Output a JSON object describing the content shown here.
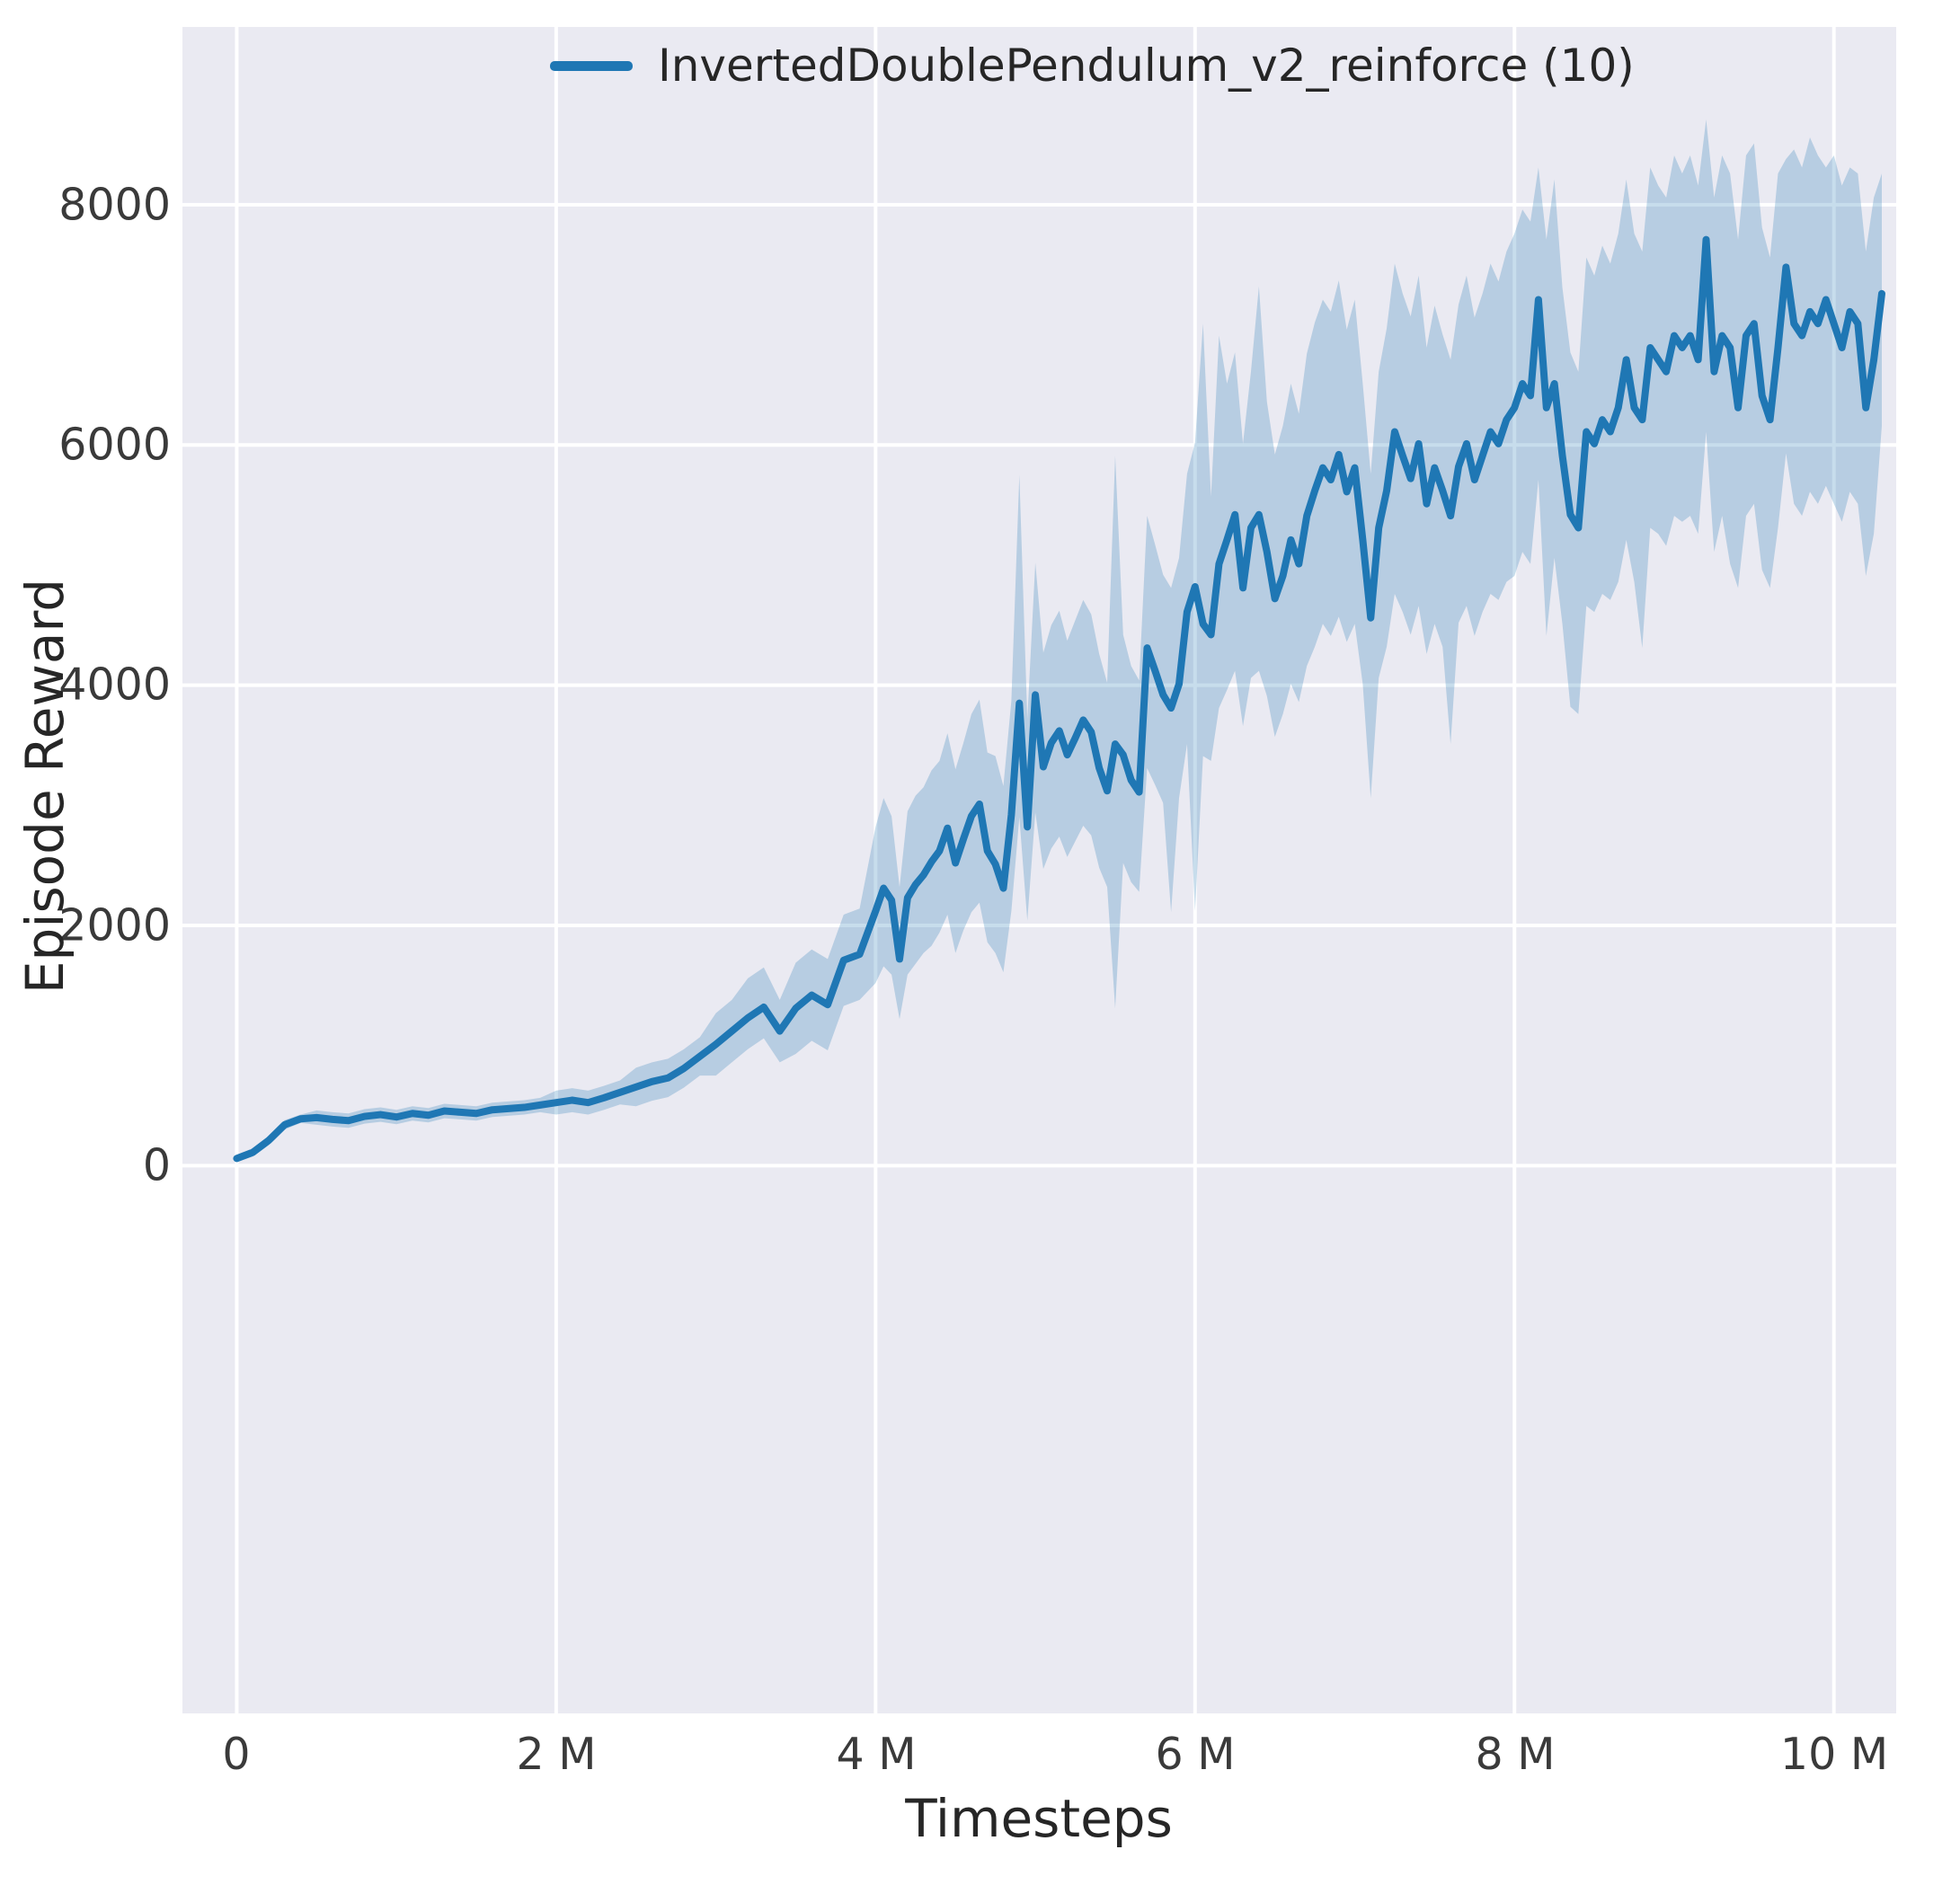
{
  "figure": {
    "background": "#ffffff",
    "plot_background": "#eaeaf2",
    "grid_color": "#ffffff",
    "text_color": "#262626"
  },
  "legend": {
    "label": "InvertedDoublePendulum_v2_reinforce (10)",
    "line_color": "#1f77b4"
  },
  "axes": {
    "xlabel": "Timesteps",
    "ylabel": "Episode Reward",
    "xticks": [
      "0",
      "2 M",
      "4 M",
      "6 M",
      "8 M",
      "10 M"
    ],
    "yticks": [
      "8000",
      "6000",
      "4000",
      "2000",
      "0"
    ]
  },
  "chart_data": {
    "type": "line",
    "title": "",
    "xlabel": "Timesteps",
    "ylabel": "Episode Reward",
    "series_name": "InvertedDoublePendulum_v2_reinforce (10)",
    "x_units": "millions of timesteps",
    "legend_position": "upper center",
    "grid": true,
    "xlim": [
      -0.34,
      10.39
    ],
    "ylim": [
      -4560,
      9480
    ],
    "xticks_values": [
      0,
      2,
      4,
      6,
      8,
      10
    ],
    "yticks_values": [
      0,
      2000,
      4000,
      6000,
      8000
    ],
    "line_color": "#1f77b4",
    "band_color": "rgba(31,119,180,0.25)",
    "x": [
      0,
      0.1,
      0.2,
      0.3,
      0.4,
      0.5,
      0.6,
      0.7,
      0.8,
      0.9,
      1,
      1.1,
      1.2,
      1.3,
      1.4,
      1.5,
      1.6,
      1.7,
      1.8,
      1.9,
      2,
      2.1,
      2.2,
      2.3,
      2.4,
      2.5,
      2.6,
      2.7,
      2.8,
      2.9,
      3,
      3.1,
      3.2,
      3.3,
      3.4,
      3.5,
      3.6,
      3.7,
      3.8,
      3.9,
      4,
      4.05,
      4.1,
      4.15,
      4.2,
      4.25,
      4.3,
      4.35,
      4.4,
      4.45,
      4.5,
      4.55,
      4.6,
      4.65,
      4.7,
      4.75,
      4.8,
      4.85,
      4.9,
      4.95,
      5,
      5.05,
      5.1,
      5.15,
      5.2,
      5.25,
      5.3,
      5.35,
      5.4,
      5.45,
      5.5,
      5.55,
      5.6,
      5.65,
      5.7,
      5.75,
      5.8,
      5.85,
      5.9,
      5.95,
      6,
      6.05,
      6.1,
      6.15,
      6.2,
      6.25,
      6.3,
      6.35,
      6.4,
      6.45,
      6.5,
      6.55,
      6.6,
      6.65,
      6.7,
      6.75,
      6.8,
      6.85,
      6.9,
      6.95,
      7,
      7.05,
      7.1,
      7.15,
      7.2,
      7.25,
      7.3,
      7.35,
      7.4,
      7.45,
      7.5,
      7.55,
      7.6,
      7.65,
      7.7,
      7.75,
      7.8,
      7.85,
      7.9,
      7.95,
      8,
      8.05,
      8.1,
      8.15,
      8.2,
      8.25,
      8.3,
      8.35,
      8.4,
      8.45,
      8.5,
      8.55,
      8.6,
      8.65,
      8.7,
      8.75,
      8.8,
      8.85,
      8.9,
      8.95,
      9,
      9.05,
      9.1,
      9.15,
      9.2,
      9.25,
      9.3,
      9.35,
      9.4,
      9.45,
      9.5,
      9.55,
      9.6,
      9.65,
      9.7,
      9.75,
      9.8,
      9.85,
      9.9,
      9.95,
      10,
      10.05,
      10.1,
      10.15,
      10.2,
      10.25,
      10.3
    ],
    "mean": [
      60,
      110,
      210,
      340,
      390,
      400,
      385,
      375,
      410,
      425,
      405,
      435,
      420,
      455,
      445,
      435,
      465,
      475,
      485,
      505,
      525,
      545,
      525,
      565,
      610,
      655,
      700,
      730,
      810,
      910,
      1010,
      1120,
      1230,
      1320,
      1120,
      1310,
      1420,
      1340,
      1710,
      1760,
      2120,
      2310,
      2210,
      1720,
      2230,
      2340,
      2420,
      2530,
      2620,
      2810,
      2520,
      2720,
      2910,
      3010,
      2620,
      2510,
      2310,
      2920,
      3850,
      2820,
      3920,
      3320,
      3520,
      3620,
      3420,
      3560,
      3710,
      3610,
      3310,
      3120,
      3510,
      3420,
      3210,
      3110,
      4310,
      4120,
      3920,
      3810,
      4010,
      4610,
      4820,
      4510,
      4420,
      5010,
      5210,
      5420,
      4810,
      5310,
      5420,
      5110,
      4720,
      4910,
      5210,
      5010,
      5410,
      5620,
      5810,
      5710,
      5920,
      5610,
      5810,
      5210,
      4560,
      5310,
      5620,
      6110,
      5910,
      5720,
      6010,
      5510,
      5810,
      5620,
      5410,
      5820,
      6010,
      5710,
      5910,
      6110,
      6010,
      6210,
      6310,
      6510,
      6410,
      7210,
      6310,
      6510,
      5910,
      5420,
      5310,
      6110,
      6010,
      6210,
      6110,
      6310,
      6710,
      6310,
      6210,
      6810,
      6710,
      6610,
      6910,
      6810,
      6910,
      6710,
      7710,
      6610,
      6910,
      6810,
      6310,
      6910,
      7010,
      6410,
      6210,
      6810,
      7480,
      7010,
      6910,
      7110,
      7010,
      7210,
      7010,
      6810,
      7110,
      7010,
      6310,
      6710,
      7260
    ],
    "band_lower": [
      30,
      75,
      170,
      300,
      355,
      340,
      325,
      315,
      350,
      365,
      345,
      375,
      360,
      395,
      385,
      375,
      405,
      415,
      425,
      445,
      425,
      445,
      425,
      465,
      510,
      495,
      540,
      570,
      650,
      750,
      750,
      860,
      970,
      1060,
      860,
      930,
      1040,
      960,
      1330,
      1380,
      1520,
      1660,
      1590,
      1220,
      1590,
      1680,
      1770,
      1830,
      1940,
      2090,
      1770,
      1960,
      2110,
      2190,
      1860,
      1770,
      1610,
      2120,
      2900,
      2040,
      2940,
      2470,
      2640,
      2740,
      2570,
      2700,
      2830,
      2750,
      2480,
      2320,
      1310,
      2520,
      2360,
      2280,
      3310,
      3170,
      3020,
      2110,
      3060,
      3510,
      2120,
      3410,
      3370,
      3810,
      3960,
      4120,
      3660,
      4060,
      4120,
      3910,
      3570,
      3760,
      4010,
      3860,
      4160,
      4320,
      4510,
      4410,
      4570,
      4360,
      4510,
      4010,
      3060,
      4060,
      4320,
      4760,
      4610,
      4420,
      4660,
      4260,
      4510,
      4320,
      3510,
      4520,
      4660,
      4410,
      4610,
      4760,
      4710,
      4860,
      4910,
      5110,
      5010,
      5710,
      4410,
      5060,
      4510,
      3820,
      3760,
      4660,
      4610,
      4760,
      4710,
      4860,
      5210,
      4860,
      4310,
      5310,
      5260,
      5160,
      5410,
      5360,
      5410,
      5260,
      6110,
      5110,
      5410,
      5010,
      4810,
      5410,
      5510,
      4960,
      4810,
      5310,
      5930,
      5510,
      5410,
      5610,
      5510,
      5660,
      5510,
      5360,
      5610,
      5510,
      4910,
      5260,
      6160
    ],
    "band_upper": [
      90,
      145,
      250,
      380,
      425,
      460,
      445,
      435,
      470,
      485,
      465,
      495,
      480,
      515,
      505,
      495,
      525,
      535,
      545,
      565,
      625,
      645,
      625,
      665,
      710,
      815,
      860,
      890,
      970,
      1070,
      1270,
      1380,
      1560,
      1650,
      1380,
      1690,
      1800,
      1720,
      2090,
      2140,
      2820,
      3060,
      2910,
      2320,
      2950,
      3080,
      3150,
      3290,
      3370,
      3600,
      3300,
      3520,
      3760,
      3880,
      3440,
      3410,
      3160,
      3870,
      5750,
      3720,
      5020,
      4270,
      4500,
      4620,
      4370,
      4540,
      4710,
      4590,
      4260,
      4020,
      5910,
      4420,
      4160,
      4040,
      5410,
      5170,
      4920,
      4810,
      5060,
      5760,
      6020,
      7010,
      5570,
      6910,
      6510,
      6770,
      6010,
      6610,
      7320,
      6360,
      5920,
      6160,
      6510,
      6260,
      6760,
      7020,
      7210,
      7110,
      7370,
      6960,
      7210,
      6510,
      5760,
      6610,
      6970,
      7510,
      7260,
      7070,
      7410,
      6810,
      7160,
      6920,
      6710,
      7170,
      7410,
      7060,
      7260,
      7510,
      7360,
      7610,
      7760,
      7960,
      7860,
      8310,
      7710,
      8210,
      7310,
      6770,
      6610,
      7560,
      7410,
      7660,
      7510,
      7760,
      8210,
      7760,
      7610,
      8310,
      8160,
      8060,
      8410,
      8260,
      8410,
      8160,
      8710,
      8060,
      8410,
      8260,
      7710,
      8410,
      8510,
      7810,
      7560,
      8260,
      8380,
      8460,
      8310,
      8560,
      8410,
      8310,
      8410,
      8160,
      8310,
      8260,
      7610,
      8060,
      8260
    ]
  }
}
